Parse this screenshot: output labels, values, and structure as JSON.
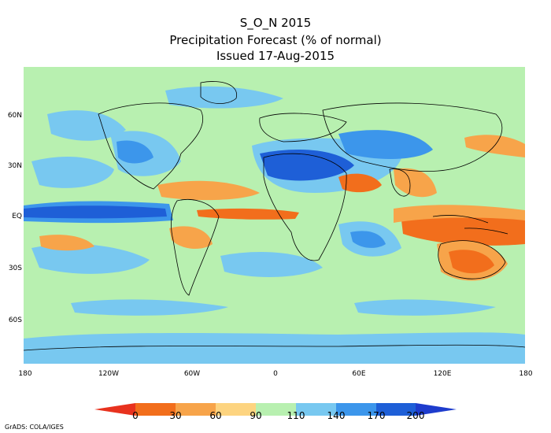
{
  "title": {
    "line1": "S_O_N 2015",
    "line2": "Precipitation Forecast (% of normal)",
    "line3": "Issued 17-Aug-2015"
  },
  "lat_labels": [
    "60N",
    "30N",
    "EQ",
    "30S",
    "60S"
  ],
  "lon_labels": [
    "180",
    "120W",
    "60W",
    "0",
    "60E",
    "120E",
    "180"
  ],
  "colorbar": {
    "ticks": [
      "0",
      "30",
      "60",
      "90",
      "110",
      "140",
      "170",
      "200"
    ],
    "colors": [
      "#e8321e",
      "#f26e1c",
      "#f7a44a",
      "#fdd480",
      "#b8f0b0",
      "#78c8f0",
      "#3c96eb",
      "#1e5fd7",
      "#1e3ccd"
    ]
  },
  "map_colors": {
    "background": "#b8f0b0",
    "very_dry": "#f26e1c",
    "dry": "#f7a44a",
    "slightly_dry": "#fdd480",
    "slightly_wet": "#78c8f0",
    "wet": "#3c96eb",
    "very_wet": "#1e5fd7",
    "coast": "#000000"
  },
  "credit": "GrADS: COLA/IGES"
}
